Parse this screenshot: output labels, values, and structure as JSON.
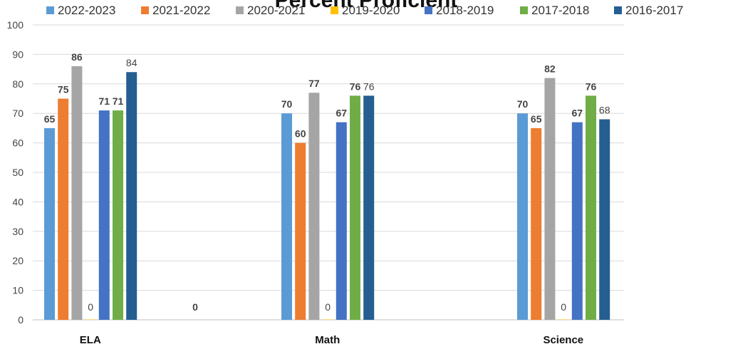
{
  "chart_data": {
    "type": "bar",
    "title": "Percent Proficient",
    "categories": [
      "ELA",
      "Math",
      "Science"
    ],
    "y_ticks": [
      "0",
      "10",
      "20",
      "30",
      "40",
      "50",
      "60",
      "70",
      "80",
      "90",
      "100"
    ],
    "ylim": [
      0,
      100
    ],
    "grid": true,
    "legend_position": "top",
    "series": [
      {
        "name": "2022-2023",
        "color": "#5B9BD5",
        "values": [
          65,
          70,
          70
        ],
        "labels": [
          "65",
          "70",
          "70"
        ],
        "label_bold": [
          true,
          true,
          true
        ]
      },
      {
        "name": "2021-2022",
        "color": "#ED7D31",
        "values": [
          75,
          60,
          65
        ],
        "labels": [
          "75",
          "60",
          "65"
        ],
        "label_bold": [
          true,
          true,
          true
        ]
      },
      {
        "name": "2020-2021",
        "color": "#A5A5A5",
        "values": [
          86,
          77,
          82
        ],
        "labels": [
          "86",
          "77",
          "82"
        ],
        "label_bold": [
          true,
          true,
          true
        ]
      },
      {
        "name": "2019-2020",
        "color": "#FFC000",
        "values": [
          0,
          0,
          0
        ],
        "labels": [
          "0",
          "0",
          "0"
        ],
        "label_bold": [
          false,
          false,
          false
        ]
      },
      {
        "name": "2018-2019",
        "color": "#4472C4",
        "values": [
          71,
          67,
          67
        ],
        "labels": [
          "71",
          "67",
          "67"
        ],
        "label_bold": [
          true,
          true,
          true
        ]
      },
      {
        "name": "2017-2018",
        "color": "#70AD47",
        "values": [
          71,
          76,
          76
        ],
        "labels": [
          "71",
          "76",
          "76"
        ],
        "label_bold": [
          true,
          true,
          true
        ]
      },
      {
        "name": "2016-2017",
        "color": "#255E91",
        "values": [
          84,
          76,
          68
        ],
        "labels": [
          "84",
          "76",
          "68"
        ],
        "label_bold": [
          false,
          false,
          false
        ]
      }
    ],
    "annotations": [
      {
        "text": "0",
        "between": [
          "ELA",
          "Math"
        ],
        "bold": true
      }
    ]
  }
}
